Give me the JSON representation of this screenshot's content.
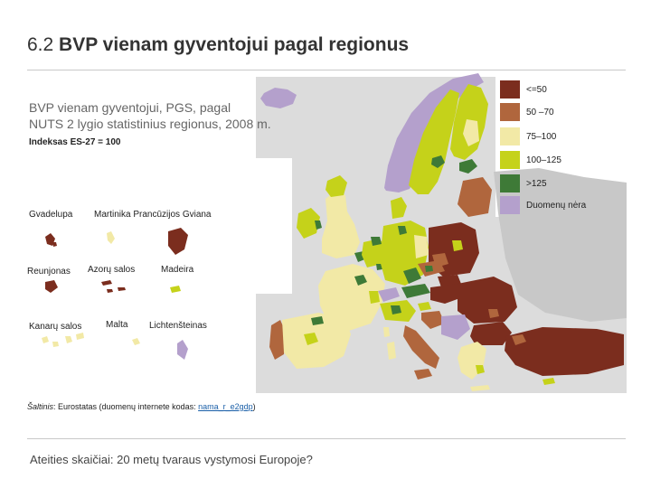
{
  "slide": {
    "title_number": "6.2",
    "title_text": "BVP vienam gyventojui pagal regionus",
    "footer": "Ateities skaičiai: 20 metų tvaraus vystymosi Europoje?"
  },
  "map": {
    "subtitle_line1": "BVP vienam gyventojui, PGS, pagal",
    "subtitle_line2": "NUTS 2 lygio statistinius regionus, 2008 m.",
    "index_note": "Indeksas ES-27 = 100",
    "legend": [
      {
        "label": "<=50",
        "color": "#7b2d1e"
      },
      {
        "label": "50 –70",
        "color": "#b0663d"
      },
      {
        "label": "75–100",
        "color": "#f2e9a6"
      },
      {
        "label": "100–125",
        "color": "#c5d21a"
      },
      {
        "label": ">125",
        "color": "#3e7a37"
      },
      {
        "label": "Duomenų nėra",
        "color": "#b4a0cc"
      }
    ],
    "insets": {
      "gvadelupa": "Gvadelupa",
      "martinika_guiana": "Martinika Prancūzijos Gviana",
      "reunjonas": "Reunjonas",
      "azoru": "Azorų salos",
      "madeira": "Madeira",
      "kanaru": "Kanarų salos",
      "malta": "Malta",
      "lichtensteinas": "Lichtenšteinas"
    },
    "source_prefix": "Šaltinis",
    "source_text": ": Eurostatas (duomenų internete kodas: ",
    "source_code": "nama_r_e2gdp",
    "source_suffix": ")"
  }
}
